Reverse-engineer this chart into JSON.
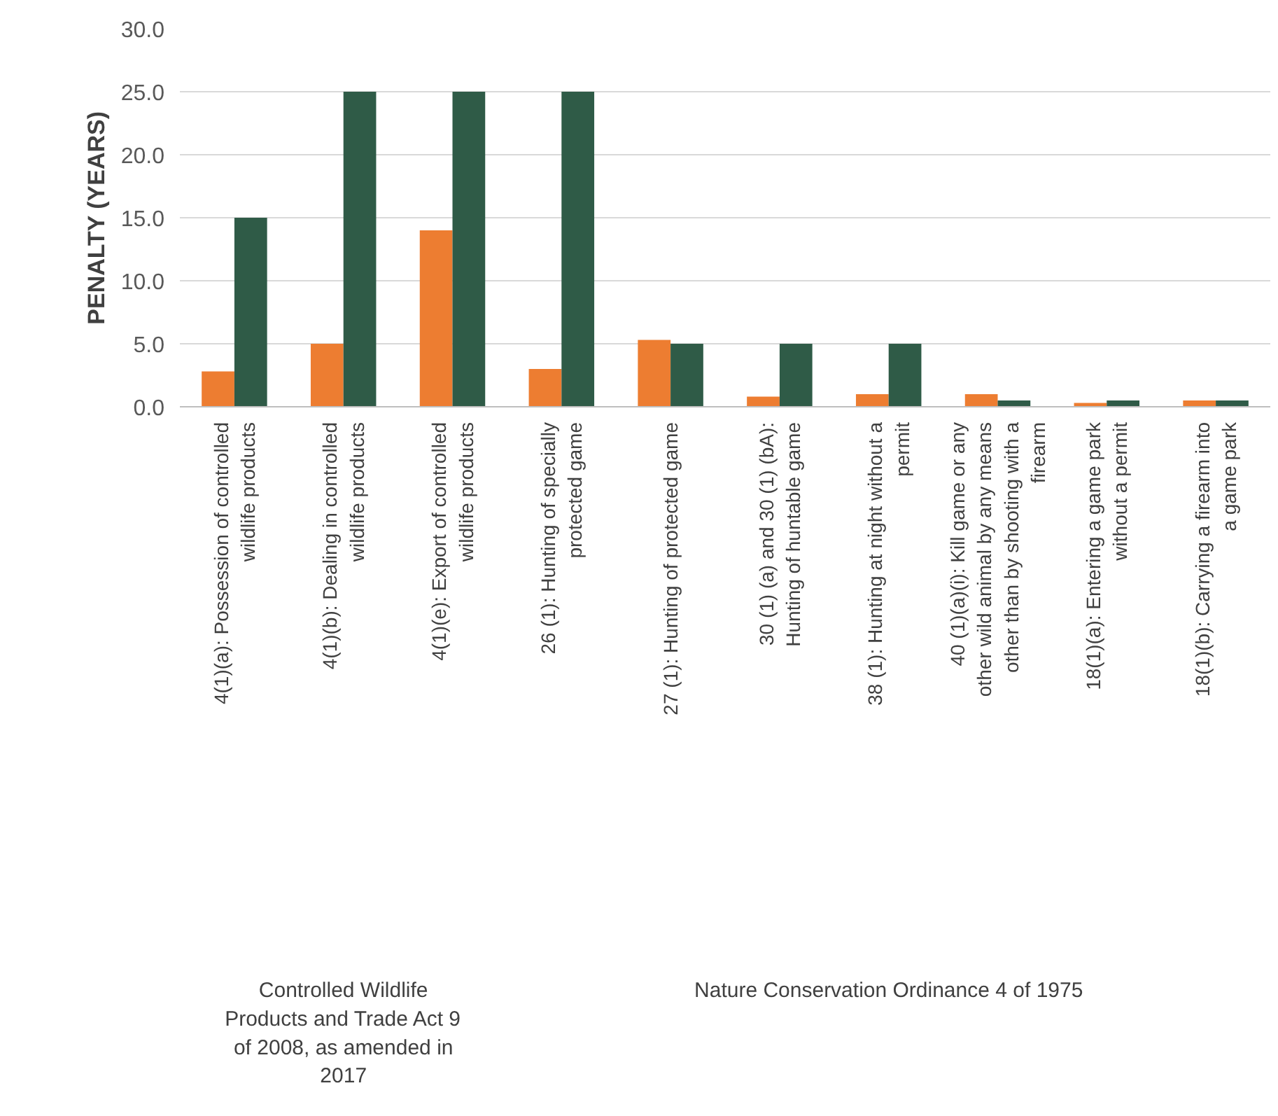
{
  "chart_data": {
    "type": "bar",
    "ylabel": "PENALTY (YEARS)",
    "categories": [
      "4(1)(a): Possession of controlled wildlife products",
      "4(1)(b): Dealing in controlled wildlife products",
      "4(1)(e): Export of controlled wildlife products",
      "26 (1): Hunting of specially protected game",
      "27 (1): Hunting of protected game",
      "30 (1) (a) and 30 (1) (bA): Hunting of huntable game",
      "38 (1): Hunting at night without a permit",
      "40 (1)(a)(i): Kill game or any other wild animal by any means other than by shooting with a firearm",
      "18(1)(a): Entering a game park without a permit",
      "18(1)(b): Carrying a firearm into a game park"
    ],
    "series": [
      {
        "color": "#ed7d31",
        "values": [
          2.8,
          5.0,
          14.0,
          3.0,
          5.3,
          0.8,
          1.0,
          1.0,
          0.3,
          0.5
        ]
      },
      {
        "color": "#2f5b47",
        "values": [
          15.0,
          25.0,
          25.0,
          25.0,
          5.0,
          5.0,
          5.0,
          0.5,
          0.5,
          0.5
        ]
      }
    ],
    "ylim": [
      0,
      30
    ],
    "yticks": [
      {
        "value": 0,
        "label": "0.0"
      },
      {
        "value": 5,
        "label": "5.0"
      },
      {
        "value": 10,
        "label": "10.0"
      },
      {
        "value": 15,
        "label": "15.0"
      },
      {
        "value": 20,
        "label": "20.0"
      },
      {
        "value": 25,
        "label": "25.0"
      },
      {
        "value": 30,
        "label": "30.0"
      }
    ],
    "grid": "y",
    "annotations": [
      "Controlled Wildlife Products and Trade Act 9 of 2008, as amended in 2017",
      "Nature Conservation Ordinance 4 of 1975"
    ]
  }
}
